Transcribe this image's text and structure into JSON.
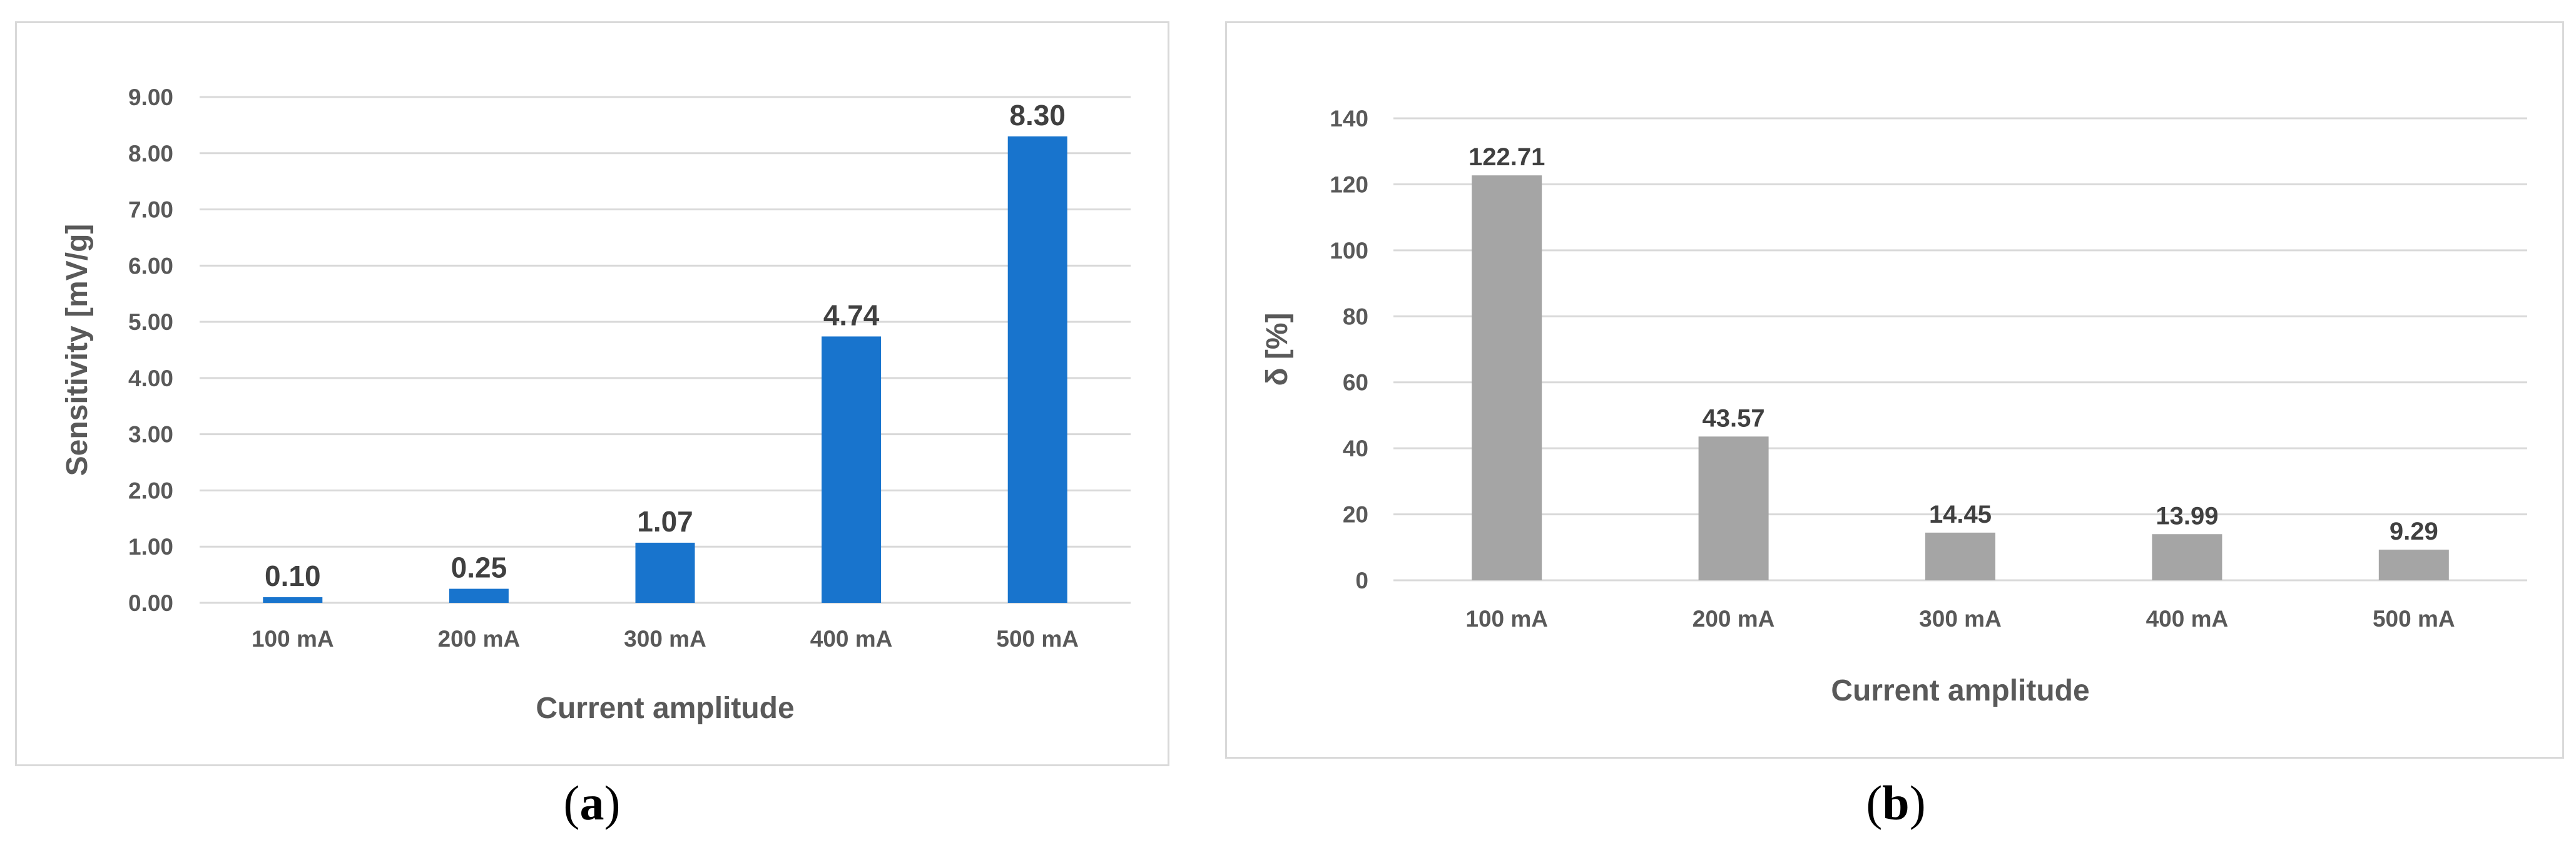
{
  "chart_data": [
    {
      "type": "bar",
      "panel": "a",
      "categories": [
        "100 mA",
        "200 mA",
        "300 mA",
        "400 mA",
        "500 mA"
      ],
      "values": [
        0.1,
        0.25,
        1.07,
        4.74,
        8.3
      ],
      "data_labels": [
        "0.10",
        "0.25",
        "1.07",
        "4.74",
        "8.30"
      ],
      "y_ticks": [
        "0.00",
        "1.00",
        "2.00",
        "3.00",
        "4.00",
        "5.00",
        "6.00",
        "7.00",
        "8.00",
        "9.00"
      ],
      "ylim": [
        0,
        9
      ],
      "xlabel": "Current amplitude",
      "ylabel": "Sensitivity [mV/g]",
      "bar_color": "#1874cd",
      "grid": true
    },
    {
      "type": "bar",
      "panel": "b",
      "categories": [
        "100 mA",
        "200 mA",
        "300 mA",
        "400 mA",
        "500 mA"
      ],
      "values": [
        122.71,
        43.57,
        14.45,
        13.99,
        9.29
      ],
      "data_labels": [
        "122.71",
        "43.57",
        "14.45",
        "13.99",
        "9.29"
      ],
      "y_ticks": [
        "0",
        "20",
        "40",
        "60",
        "80",
        "100",
        "120",
        "140"
      ],
      "ylim": [
        0,
        140
      ],
      "xlabel": "Current amplitude",
      "ylabel": "δ [%]",
      "bar_color": "#a5a5a5",
      "grid": true
    }
  ],
  "captions": {
    "a": {
      "open": "(",
      "letter": "a",
      "close": ")"
    },
    "b": {
      "open": "(",
      "letter": "b",
      "close": ")"
    }
  }
}
